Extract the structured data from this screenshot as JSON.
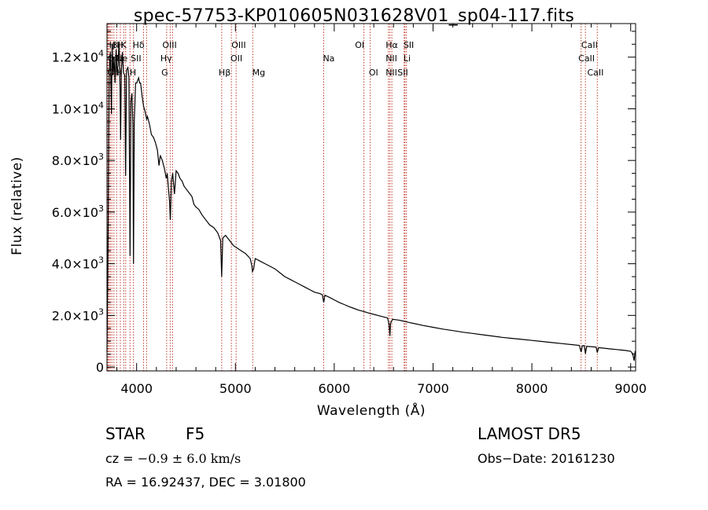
{
  "chart_data": {
    "type": "line",
    "title": "spec-57753-KP010605N031628V01_sp04-117.fits",
    "xlabel": "Wavelength (Å)",
    "ylabel": "Flux (relative)",
    "xlim": [
      3700,
      9050
    ],
    "ylim": [
      -150,
      13300
    ],
    "xticks": [
      4000,
      5000,
      6000,
      7000,
      8000,
      9000
    ],
    "yticks": [
      {
        "value": 0,
        "label_main": "0",
        "label_exp": ""
      },
      {
        "value": 2000,
        "label_main": "2.0×10",
        "label_exp": "3"
      },
      {
        "value": 4000,
        "label_main": "4.0×10",
        "label_exp": "3"
      },
      {
        "value": 6000,
        "label_main": "6.0×10",
        "label_exp": "3"
      },
      {
        "value": 8000,
        "label_main": "8.0×10",
        "label_exp": "3"
      },
      {
        "value": 10000,
        "label_main": "1.0×10",
        "label_exp": "4"
      },
      {
        "value": 12000,
        "label_main": "1.2×10",
        "label_exp": "4"
      }
    ],
    "series": [
      {
        "points": [
          [
            3700,
            600
          ],
          [
            3712,
            5300
          ],
          [
            3722,
            11400
          ],
          [
            3734,
            12200
          ],
          [
            3745,
            9800
          ],
          [
            3752,
            12500
          ],
          [
            3762,
            11300
          ],
          [
            3772,
            12000
          ],
          [
            3782,
            11000
          ],
          [
            3792,
            12300
          ],
          [
            3800,
            11400
          ],
          [
            3812,
            11700
          ],
          [
            3822,
            12600
          ],
          [
            3832,
            10800
          ],
          [
            3838,
            8800
          ],
          [
            3846,
            11500
          ],
          [
            3856,
            12200
          ],
          [
            3866,
            11400
          ],
          [
            3880,
            11300
          ],
          [
            3889,
            7400
          ],
          [
            3898,
            11500
          ],
          [
            3912,
            11600
          ],
          [
            3922,
            11200
          ],
          [
            3933,
            4300
          ],
          [
            3942,
            10300
          ],
          [
            3952,
            10600
          ],
          [
            3962,
            9400
          ],
          [
            3968,
            4000
          ],
          [
            3976,
            9500
          ],
          [
            3990,
            11000
          ],
          [
            4002,
            11000
          ],
          [
            4010,
            11100
          ],
          [
            4020,
            11200
          ],
          [
            4030,
            11000
          ],
          [
            4040,
            11000
          ],
          [
            4055,
            10500
          ],
          [
            4070,
            10100
          ],
          [
            4085,
            9900
          ],
          [
            4101,
            9600
          ],
          [
            4110,
            9700
          ],
          [
            4130,
            9400
          ],
          [
            4150,
            9000
          ],
          [
            4170,
            8900
          ],
          [
            4190,
            8700
          ],
          [
            4210,
            8400
          ],
          [
            4226,
            7800
          ],
          [
            4240,
            8200
          ],
          [
            4260,
            8000
          ],
          [
            4280,
            7700
          ],
          [
            4300,
            7300
          ],
          [
            4310,
            7500
          ],
          [
            4320,
            7000
          ],
          [
            4334,
            6400
          ],
          [
            4341,
            5700
          ],
          [
            4352,
            7200
          ],
          [
            4365,
            7500
          ],
          [
            4383,
            6700
          ],
          [
            4400,
            7600
          ],
          [
            4420,
            7500
          ],
          [
            4440,
            7300
          ],
          [
            4460,
            7200
          ],
          [
            4480,
            7000
          ],
          [
            4500,
            6900
          ],
          [
            4520,
            6800
          ],
          [
            4540,
            6700
          ],
          [
            4560,
            6600
          ],
          [
            4580,
            6300
          ],
          [
            4600,
            6200
          ],
          [
            4630,
            6100
          ],
          [
            4660,
            5900
          ],
          [
            4700,
            5700
          ],
          [
            4740,
            5500
          ],
          [
            4780,
            5400
          ],
          [
            4820,
            5200
          ],
          [
            4850,
            4900
          ],
          [
            4861,
            3500
          ],
          [
            4872,
            5000
          ],
          [
            4900,
            5100
          ],
          [
            4940,
            4900
          ],
          [
            4980,
            4700
          ],
          [
            5020,
            4600
          ],
          [
            5060,
            4500
          ],
          [
            5100,
            4400
          ],
          [
            5150,
            4200
          ],
          [
            5167,
            3900
          ],
          [
            5172,
            3700
          ],
          [
            5184,
            3800
          ],
          [
            5200,
            4200
          ],
          [
            5250,
            4100
          ],
          [
            5300,
            4000
          ],
          [
            5350,
            3900
          ],
          [
            5400,
            3800
          ],
          [
            5450,
            3650
          ],
          [
            5500,
            3500
          ],
          [
            5550,
            3400
          ],
          [
            5600,
            3300
          ],
          [
            5650,
            3200
          ],
          [
            5700,
            3100
          ],
          [
            5750,
            3000
          ],
          [
            5800,
            2900
          ],
          [
            5850,
            2850
          ],
          [
            5880,
            2800
          ],
          [
            5893,
            2500
          ],
          [
            5905,
            2780
          ],
          [
            5950,
            2700
          ],
          [
            6000,
            2600
          ],
          [
            6050,
            2500
          ],
          [
            6100,
            2420
          ],
          [
            6150,
            2340
          ],
          [
            6200,
            2270
          ],
          [
            6250,
            2200
          ],
          [
            6300,
            2150
          ],
          [
            6350,
            2090
          ],
          [
            6400,
            2040
          ],
          [
            6450,
            1990
          ],
          [
            6500,
            1940
          ],
          [
            6540,
            1900
          ],
          [
            6555,
            1650
          ],
          [
            6563,
            1200
          ],
          [
            6570,
            1700
          ],
          [
            6590,
            1850
          ],
          [
            6650,
            1820
          ],
          [
            6700,
            1780
          ],
          [
            6750,
            1730
          ],
          [
            6800,
            1690
          ],
          [
            6900,
            1610
          ],
          [
            7000,
            1540
          ],
          [
            7100,
            1470
          ],
          [
            7200,
            1410
          ],
          [
            7300,
            1350
          ],
          [
            7400,
            1300
          ],
          [
            7500,
            1250
          ],
          [
            7600,
            1200
          ],
          [
            7700,
            1150
          ],
          [
            7800,
            1110
          ],
          [
            7900,
            1070
          ],
          [
            8000,
            1030
          ],
          [
            8100,
            990
          ],
          [
            8200,
            950
          ],
          [
            8300,
            910
          ],
          [
            8400,
            870
          ],
          [
            8480,
            840
          ],
          [
            8498,
            580
          ],
          [
            8510,
            820
          ],
          [
            8530,
            830
          ],
          [
            8542,
            520
          ],
          [
            8555,
            800
          ],
          [
            8600,
            790
          ],
          [
            8650,
            770
          ],
          [
            8662,
            560
          ],
          [
            8675,
            750
          ],
          [
            8750,
            720
          ],
          [
            8800,
            700
          ],
          [
            8850,
            680
          ],
          [
            8900,
            660
          ],
          [
            8950,
            640
          ],
          [
            9000,
            610
          ],
          [
            9020,
            520
          ],
          [
            9035,
            250
          ],
          [
            9045,
            620
          ]
        ]
      }
    ],
    "lines": [
      {
        "x": 3704,
        "label": "H"
      },
      {
        "x": 3713,
        "label": "OII"
      },
      {
        "x": 3722,
        "label": "OII"
      },
      {
        "x": 3734,
        "label": "β"
      },
      {
        "x": 3750,
        "label": "H"
      },
      {
        "x": 3770,
        "label": "Fe"
      },
      {
        "x": 3798,
        "label": "H"
      },
      {
        "x": 3835,
        "label": "Ne"
      },
      {
        "x": 3869,
        "label": "Ne"
      },
      {
        "x": 3889,
        "label": "H"
      },
      {
        "x": 3933,
        "label": "K"
      },
      {
        "x": 3968,
        "label": "H"
      },
      {
        "x": 4070,
        "label": "SII"
      },
      {
        "x": 4101,
        "label": "Hδ"
      },
      {
        "x": 4304,
        "label": "G"
      },
      {
        "x": 4340,
        "label": "Hγ"
      },
      {
        "x": 4363,
        "label": "OIII"
      },
      {
        "x": 4861,
        "label": "Hβ"
      },
      {
        "x": 4959,
        "label": "OIII"
      },
      {
        "x": 5007,
        "label": "OIII"
      },
      {
        "x": 5175,
        "label": "Mg"
      },
      {
        "x": 5893,
        "label": "Na"
      },
      {
        "x": 6300,
        "label": "OI"
      },
      {
        "x": 6364,
        "label": "OI"
      },
      {
        "x": 6548,
        "label": "NII"
      },
      {
        "x": 6563,
        "label": "Hα"
      },
      {
        "x": 6583,
        "label": "NII"
      },
      {
        "x": 6707,
        "label": "Li"
      },
      {
        "x": 6716,
        "label": "SII"
      },
      {
        "x": 6731,
        "label": "SII"
      },
      {
        "x": 8498,
        "label": "CaII"
      },
      {
        "x": 8542,
        "label": "CaII"
      },
      {
        "x": 8662,
        "label": "CaII"
      }
    ],
    "line_labels": [
      {
        "x": 3722,
        "row": 0,
        "text": "H"
      },
      {
        "x": 3752,
        "row": 0,
        "text": "β"
      },
      {
        "x": 3798,
        "row": 0,
        "text": "H"
      },
      {
        "x": 3840,
        "row": 0,
        "text": "K"
      },
      {
        "x": 3960,
        "row": 0,
        "text": "Hδ"
      },
      {
        "x": 4260,
        "row": 0,
        "text": "OIII"
      },
      {
        "x": 4960,
        "row": 0,
        "text": "OIII"
      },
      {
        "x": 6210,
        "row": 0,
        "text": "OI"
      },
      {
        "x": 6520,
        "row": 0,
        "text": "Hα"
      },
      {
        "x": 6700,
        "row": 0,
        "text": "SII"
      },
      {
        "x": 8500,
        "row": 0,
        "text": "CaII"
      },
      {
        "x": 3705,
        "row": 1,
        "text": "OII"
      },
      {
        "x": 3790,
        "row": 1,
        "text": "Ne"
      },
      {
        "x": 3940,
        "row": 1,
        "text": "SII"
      },
      {
        "x": 4240,
        "row": 1,
        "text": "Hγ"
      },
      {
        "x": 4950,
        "row": 1,
        "text": "OII"
      },
      {
        "x": 5885,
        "row": 1,
        "text": "Na"
      },
      {
        "x": 6520,
        "row": 1,
        "text": "NII"
      },
      {
        "x": 6700,
        "row": 1,
        "text": "Li"
      },
      {
        "x": 8470,
        "row": 1,
        "text": "CaII"
      },
      {
        "x": 3705,
        "row": 2,
        "text": "OII"
      },
      {
        "x": 3790,
        "row": 2,
        "text": "H"
      },
      {
        "x": 3930,
        "row": 2,
        "text": "H"
      },
      {
        "x": 4250,
        "row": 2,
        "text": "G"
      },
      {
        "x": 4830,
        "row": 2,
        "text": "Hβ"
      },
      {
        "x": 5170,
        "row": 2,
        "text": "Mg"
      },
      {
        "x": 6350,
        "row": 2,
        "text": "OI"
      },
      {
        "x": 6520,
        "row": 2,
        "text": "NII"
      },
      {
        "x": 6640,
        "row": 2,
        "text": "SII"
      },
      {
        "x": 8560,
        "row": 2,
        "text": "CaII"
      }
    ],
    "grid": false,
    "legend": "none"
  },
  "info": {
    "object_class": "STAR",
    "subclass": "F5",
    "survey": "LAMOST  DR5",
    "redshift_prefix": "cz = ",
    "redshift_value": "−0.9 ± 6.0 km/s",
    "obs_date": "Obs−Date: 20161230",
    "coords": "RA =  16.92437, DEC =    3.01800"
  },
  "colors": {
    "spectrum": "#000000",
    "line_markers": "#c0392b",
    "axes": "#000000",
    "background": "#ffffff"
  }
}
